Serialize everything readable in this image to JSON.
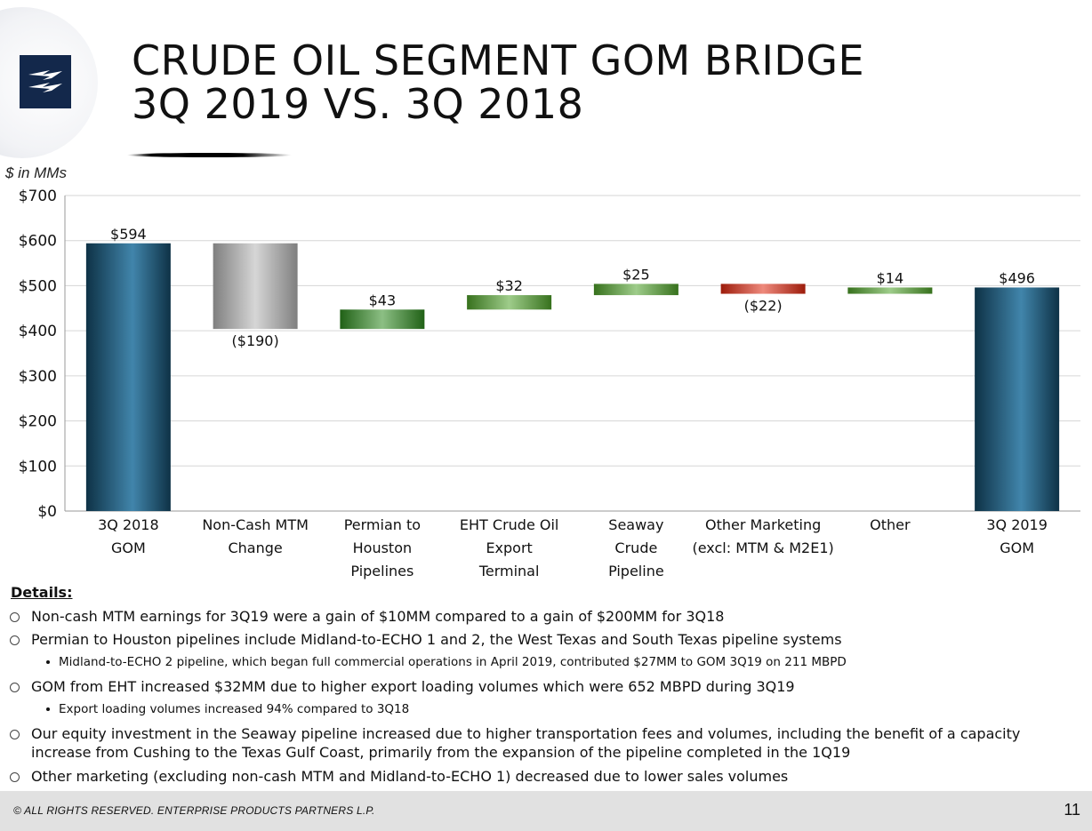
{
  "slide": {
    "title_line1": "CRUDE OIL SEGMENT GOM BRIDGE",
    "title_line2": "3Q 2019 VS. 3Q 2018",
    "units_label": "$ in MMs",
    "details_heading": "Details",
    "bullets": [
      "Non-cash MTM earnings for 3Q19 were a gain of $10MM compared to a gain of $200MM for 3Q18",
      "Permian to Houston pipelines include Midland-to-ECHO 1 and 2, the West Texas and South Texas pipeline systems",
      "GOM from EHT increased $32MM due to higher export loading volumes which were 652 MBPD during 3Q19",
      "Our equity investment in the Seaway pipeline increased due to higher transportation fees and volumes, including the benefit of a capacity increase from Cushing to the Texas Gulf Coast, primarily from the expansion of the pipeline completed in the 1Q19",
      "Other marketing (excluding non-cash MTM and Midland-to-ECHO 1) decreased due to lower sales volumes"
    ],
    "sub_bullets": [
      "Midland-to-ECHO 2 pipeline, which began full commercial operations in April 2019, contributed $27MM to GOM 3Q19 on 211 MBPD",
      "Export loading volumes increased 94% compared to 3Q18"
    ],
    "copyright": "© ALL RIGHTS RESERVED. ENTERPRISE PRODUCTS PARTNERS L.P.",
    "page_number": "11"
  },
  "chart_data": {
    "type": "bar",
    "subtype": "waterfall",
    "ylim": [
      0,
      700
    ],
    "yticks": [
      0,
      100,
      200,
      300,
      400,
      500,
      600,
      700
    ],
    "ytick_labels": [
      "$0",
      "$100",
      "$200",
      "$300",
      "$400",
      "$500",
      "$600",
      "$700"
    ],
    "grid": true,
    "categories": [
      [
        "3Q 2018",
        "GOM"
      ],
      [
        "Non-Cash MTM",
        "Change"
      ],
      [
        "Permian to",
        "Houston",
        "Pipelines"
      ],
      [
        "EHT Crude Oil",
        "Export",
        "Terminal"
      ],
      [
        "Seaway",
        "Crude",
        "Pipeline"
      ],
      [
        "Other Marketing",
        "(excl: MTM & M2E1)"
      ],
      [
        "Other"
      ],
      [
        "3Q 2019",
        "GOM"
      ]
    ],
    "bars": [
      {
        "kind": "total",
        "start": 0,
        "end": 594,
        "label": "$594",
        "color": "#1f6f9c"
      },
      {
        "kind": "decrease",
        "start": 594,
        "end": 404,
        "label": "($190)",
        "color": "#b5b5b5"
      },
      {
        "kind": "increase",
        "start": 404,
        "end": 447,
        "label": "$43",
        "color": "#2e8b1f"
      },
      {
        "kind": "increase",
        "start": 447,
        "end": 479,
        "label": "$32",
        "color": "#4fa22a"
      },
      {
        "kind": "increase",
        "start": 479,
        "end": 504,
        "label": "$25",
        "color": "#4fa22a"
      },
      {
        "kind": "decrease",
        "start": 504,
        "end": 482,
        "label": "($22)",
        "color": "#e02810"
      },
      {
        "kind": "increase",
        "start": 482,
        "end": 496,
        "label": "$14",
        "color": "#4fa22a"
      },
      {
        "kind": "total",
        "start": 0,
        "end": 496,
        "label": "$496",
        "color": "#1f6f9c"
      }
    ]
  }
}
